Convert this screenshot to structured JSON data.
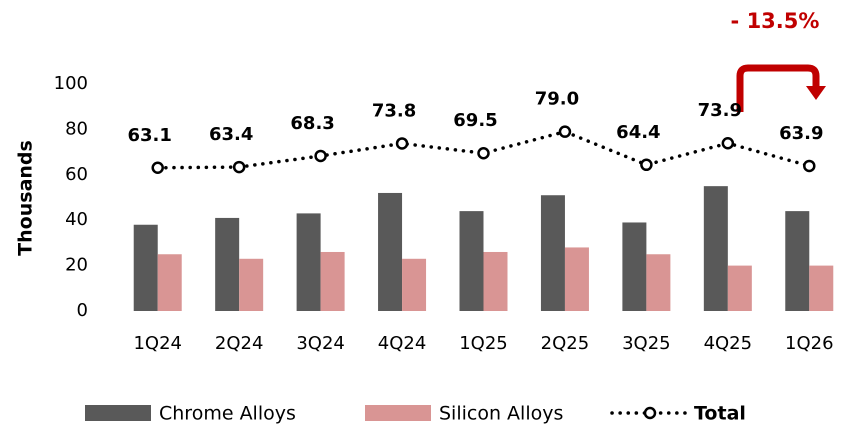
{
  "chart_data": {
    "type": "bar",
    "y_label": "Thousands",
    "annotation": "- 13.5%",
    "categories": [
      "1Q24",
      "2Q24",
      "3Q24",
      "4Q24",
      "1Q25",
      "2Q25",
      "3Q25",
      "4Q25",
      "1Q26"
    ],
    "series": [
      {
        "name": "Chrome Alloys",
        "type": "bar",
        "color": "#595959",
        "values": [
          38,
          41,
          43,
          52,
          44,
          51,
          39,
          55,
          44
        ]
      },
      {
        "name": "Silicon Alloys",
        "type": "bar",
        "color": "#d99594",
        "values": [
          25,
          23,
          26,
          23,
          26,
          28,
          25,
          20,
          20
        ]
      },
      {
        "name": "Total",
        "type": "line",
        "color": "#000000",
        "values": [
          63.1,
          63.4,
          68.3,
          73.8,
          69.5,
          79.0,
          64.4,
          73.9,
          63.9
        ],
        "value_labels": [
          "63.1",
          "63.4",
          "68.3",
          "73.8",
          "69.5",
          "79.0",
          "64.4",
          "73.9",
          "63.9"
        ]
      }
    ],
    "ylim": [
      0,
      100
    ],
    "yticks": [
      0,
      20,
      40,
      60,
      80,
      100
    ],
    "grid": false
  }
}
